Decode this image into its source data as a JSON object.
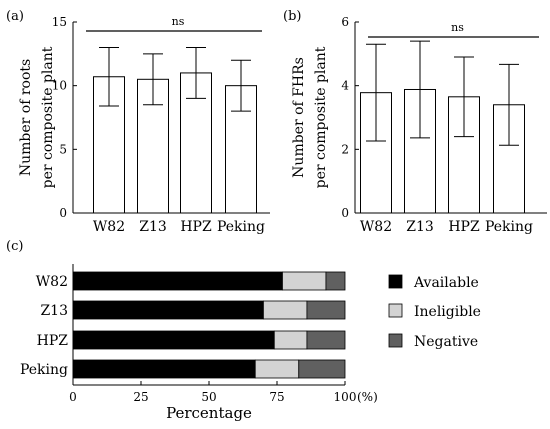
{
  "chart_data": [
    {
      "type": "bar",
      "panel_label": "(a)",
      "categories": [
        "W82",
        "Z13",
        "HPZ",
        "Peking"
      ],
      "values": [
        10.7,
        10.5,
        11.0,
        10.0
      ],
      "error": [
        2.3,
        2.0,
        2.0,
        2.0
      ],
      "ylabel_lines": [
        "Number of roots",
        "per composite plant"
      ],
      "ylim": [
        0,
        15
      ],
      "yticks": [
        "0",
        "5",
        "10",
        "15"
      ],
      "significance": "ns"
    },
    {
      "type": "bar",
      "panel_label": "(b)",
      "categories": [
        "W82",
        "Z13",
        "HPZ",
        "Peking"
      ],
      "values": [
        3.78,
        3.88,
        3.65,
        3.4
      ],
      "error": [
        1.52,
        1.52,
        1.25,
        1.27
      ],
      "ylabel_lines": [
        "Number of FHRs",
        "per composite plant"
      ],
      "ylim": [
        0,
        6
      ],
      "yticks": [
        "0",
        "2",
        "4",
        "6"
      ],
      "significance": "ns"
    },
    {
      "type": "bar",
      "stacked": true,
      "orientation": "horizontal",
      "panel_label": "(c)",
      "categories": [
        "W82",
        "Z13",
        "HPZ",
        "Peking"
      ],
      "series": [
        {
          "name": "Available",
          "values": [
            77,
            70,
            74,
            67
          ],
          "color": "#000000"
        },
        {
          "name": "Ineligible",
          "values": [
            16,
            16,
            12,
            16
          ],
          "color": "#d3d3d3"
        },
        {
          "name": "Negative",
          "values": [
            7,
            14,
            14,
            17
          ],
          "color": "#606060"
        }
      ],
      "xlabel": "Percentage",
      "xunit": "(%)",
      "xlim": [
        0,
        100
      ],
      "xticks": [
        "0",
        "25",
        "50",
        "75",
        "100"
      ]
    }
  ]
}
